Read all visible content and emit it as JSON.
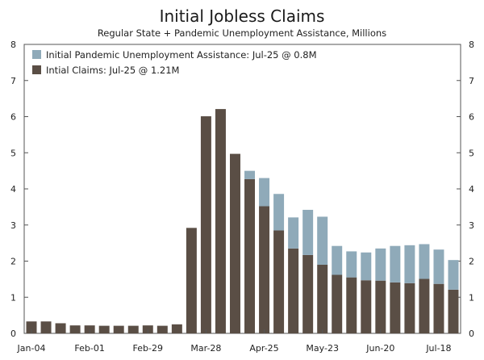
{
  "chart_data": {
    "type": "bar",
    "stacked": true,
    "title": "Initial Jobless Claims",
    "subtitle": "Regular State + Pandemic Unemployment Assistance, Millions",
    "ylim": [
      0,
      8
    ],
    "yticks": [
      0,
      1,
      2,
      3,
      4,
      5,
      6,
      7,
      8
    ],
    "xtick_labels": [
      "Jan-04",
      "Feb-01",
      "Feb-29",
      "Mar-28",
      "Apr-25",
      "May-23",
      "Jun-20",
      "Jul-18"
    ],
    "xtick_label_index": [
      0,
      4,
      8,
      12,
      16,
      20,
      24,
      28
    ],
    "legend_position": "top-left",
    "categories": [
      "Jan-04",
      "Jan-11",
      "Jan-18",
      "Jan-25",
      "Feb-01",
      "Feb-08",
      "Feb-15",
      "Feb-22",
      "Feb-29",
      "Mar-07",
      "Mar-14",
      "Mar-21",
      "Mar-28",
      "Apr-04",
      "Apr-11",
      "Apr-18",
      "Apr-25",
      "May-02",
      "May-09",
      "May-16",
      "May-23",
      "May-30",
      "Jun-06",
      "Jun-13",
      "Jun-20",
      "Jun-27",
      "Jul-04",
      "Jul-11",
      "Jul-18",
      "Jul-25"
    ],
    "series": [
      {
        "name": "Intial Claims: Jul-25 @ 1.21M",
        "color": "#5a4e45",
        "values": [
          0.33,
          0.33,
          0.28,
          0.22,
          0.22,
          0.21,
          0.21,
          0.21,
          0.22,
          0.21,
          0.25,
          2.92,
          6.01,
          6.21,
          4.97,
          4.27,
          3.52,
          2.85,
          2.35,
          2.17,
          1.9,
          1.62,
          1.55,
          1.47,
          1.46,
          1.41,
          1.39,
          1.51,
          1.37,
          1.21
        ]
      },
      {
        "name": "Initial Pandemic Unemployment Assistance: Jul-25 @ 0.8M",
        "color": "#8faab9",
        "values": [
          0,
          0,
          0,
          0,
          0,
          0,
          0,
          0,
          0,
          0,
          0,
          0,
          0,
          0,
          0,
          0.23,
          0.78,
          1.01,
          0.86,
          1.25,
          1.33,
          0.8,
          0.72,
          0.77,
          0.89,
          1.01,
          1.05,
          0.96,
          0.95,
          0.82
        ]
      }
    ]
  }
}
